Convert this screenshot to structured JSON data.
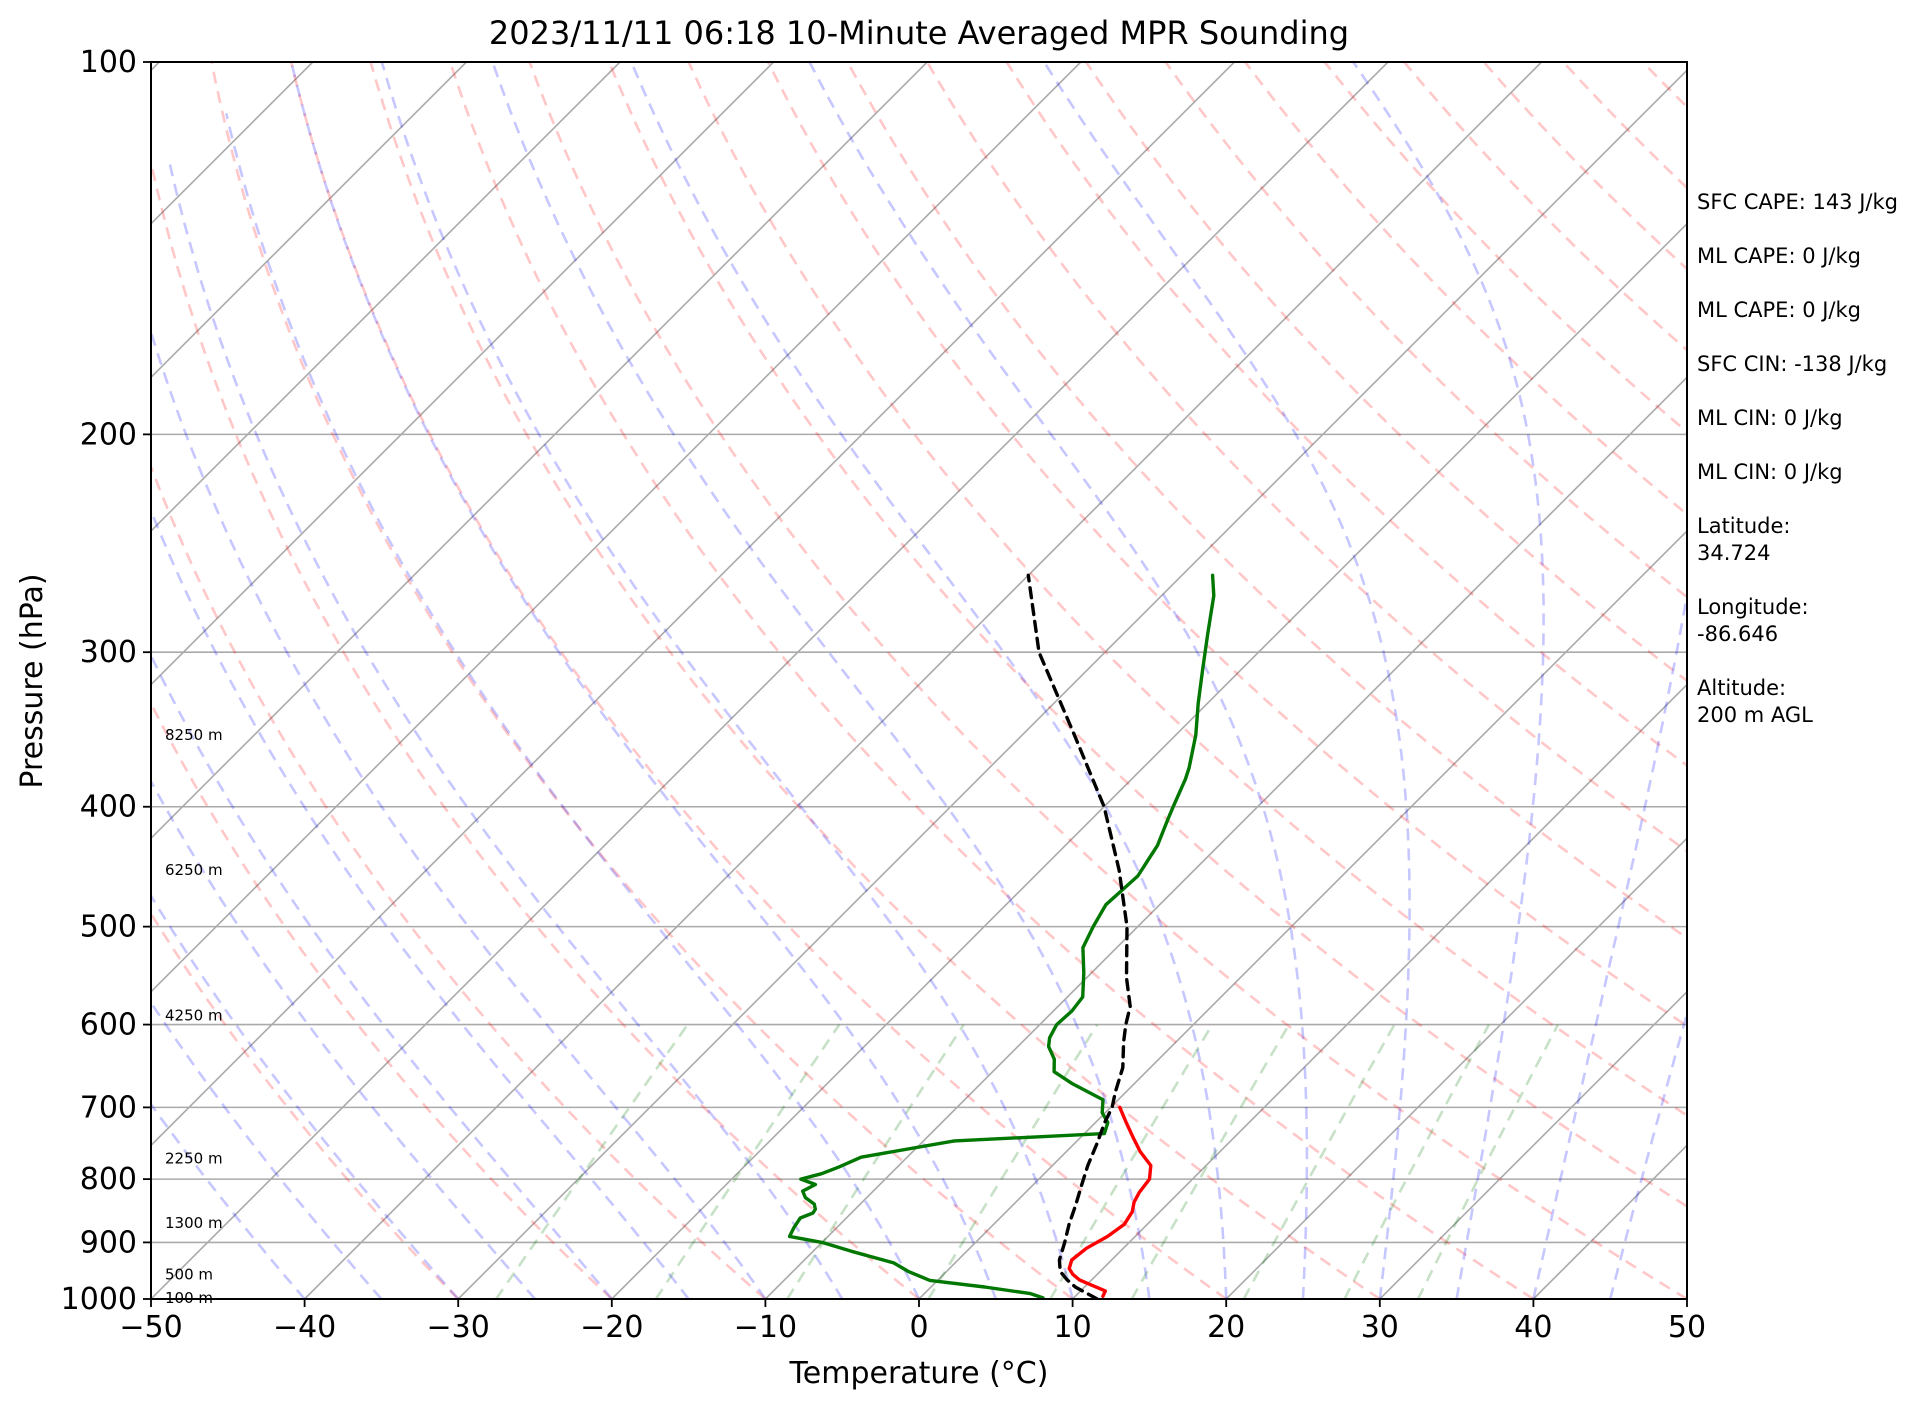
{
  "chart_data": {
    "type": "line",
    "title": "2023/11/11 06:18 10-Minute Averaged MPR Sounding",
    "xlabel": "Temperature (°C)",
    "ylabel": "Pressure (hPa)",
    "xlim": [
      -50,
      50
    ],
    "ylim": [
      1000,
      100
    ],
    "y_scale": "log",
    "x_ticks": [
      "−50",
      "−40",
      "−30",
      "−20",
      "−10",
      "0",
      "10",
      "20",
      "30",
      "40",
      "50"
    ],
    "x_tick_values": [
      -50,
      -40,
      -30,
      -20,
      -10,
      0,
      10,
      20,
      30,
      40,
      50
    ],
    "y_ticks": [
      "100",
      "200",
      "300",
      "400",
      "500",
      "600",
      "700",
      "800",
      "900",
      "1000"
    ],
    "y_tick_values": [
      100,
      200,
      300,
      400,
      500,
      600,
      700,
      800,
      900,
      1000
    ],
    "grid": true,
    "height_labels": [
      {
        "text": "100 m",
        "p": 998
      },
      {
        "text": "500 m",
        "p": 955
      },
      {
        "text": "1300 m",
        "p": 868
      },
      {
        "text": "2250 m",
        "p": 770
      },
      {
        "text": "4250 m",
        "p": 590
      },
      {
        "text": "6250 m",
        "p": 450
      },
      {
        "text": "8250 m",
        "p": 350
      }
    ],
    "info_panel": [
      "SFC CAPE: 143 J/kg",
      "ML CAPE: 0 J/kg",
      "ML CAPE: 0 J/kg",
      "SFC CIN: -138 J/kg",
      "ML CIN: 0 J/kg",
      "ML CIN: 0 J/kg",
      "Latitude:",
      "34.724",
      "Longitude:",
      "-86.646",
      "Altitude:",
      "200 m AGL"
    ],
    "series": [
      {
        "color": "#ff0000",
        "p": [
          995,
          985,
          975,
          965,
          955,
          945,
          930,
          910,
          890,
          870,
          850,
          835,
          820,
          800,
          780,
          760,
          740,
          720,
          700
        ],
        "t": [
          11.8,
          11.6,
          10.4,
          9.2,
          8.4,
          7.8,
          7.4,
          7.6,
          8.2,
          8.5,
          8.2,
          7.7,
          7.4,
          7.2,
          6.4,
          4.8,
          3.4,
          2.0,
          0.6
        ]
      },
      {
        "color": "#007700",
        "p": [
          998,
          990,
          978,
          966,
          950,
          935,
          915,
          900,
          890,
          875,
          860,
          852,
          846,
          838,
          828,
          818,
          808,
          800,
          792,
          782,
          768,
          745,
          735,
          720,
          707,
          690,
          670,
          655,
          640,
          625,
          615,
          600,
          585,
          570,
          545,
          520,
          500,
          480,
          455,
          430,
          410,
          400,
          380,
          372,
          350,
          330,
          310,
          290,
          270,
          260
        ],
        "t": [
          8.0,
          6.9,
          3.5,
          -0.5,
          -2.5,
          -4.0,
          -7.5,
          -10.0,
          -12.5,
          -12.8,
          -13.0,
          -12.5,
          -12.6,
          -13.0,
          -14.0,
          -14.6,
          -14.2,
          -15.5,
          -14.5,
          -13.8,
          -13.0,
          -8.0,
          1.3,
          0.8,
          -0.2,
          -1.0,
          -4.0,
          -6.0,
          -6.8,
          -8.0,
          -8.5,
          -8.9,
          -8.8,
          -9.0,
          -10.5,
          -12.2,
          -12.9,
          -13.5,
          -13.3,
          -14.0,
          -15.0,
          -15.5,
          -16.5,
          -17.0,
          -18.7,
          -20.6,
          -22.5,
          -24.5,
          -26.6,
          -28.0
        ]
      },
      {
        "color": "#000000",
        "dashed": true,
        "p": [
          1000,
          978,
          965,
          950,
          930,
          900,
          870,
          840,
          810,
          780,
          750,
          720,
          700,
          680,
          650,
          620,
          600,
          580,
          550,
          500,
          450,
          400,
          350,
          300,
          260
        ],
        "t": [
          11.6,
          9.4,
          8.4,
          7.4,
          6.6,
          5.8,
          4.9,
          4.1,
          3.2,
          2.3,
          1.5,
          0.6,
          0.1,
          -0.7,
          -1.8,
          -3.4,
          -4.4,
          -5.3,
          -7.4,
          -10.7,
          -14.9,
          -20.0,
          -26.6,
          -34.3,
          -40.0
        ]
      }
    ]
  }
}
